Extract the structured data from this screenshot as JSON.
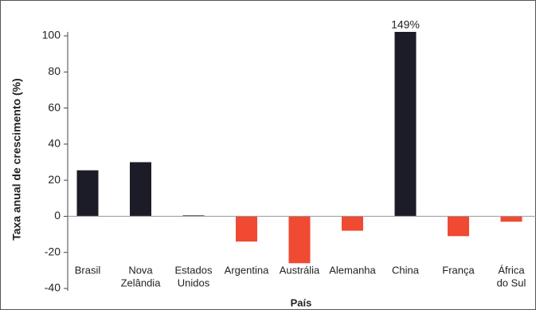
{
  "chart_data": {
    "type": "bar",
    "y_label": "Taxa anual de crescimento (%)",
    "x_label": "País",
    "categories": [
      [
        "Brasil"
      ],
      [
        "Nova",
        "Zelândia"
      ],
      [
        "Estados",
        "Unidos"
      ],
      [
        "Argentina"
      ],
      [
        "Austrália"
      ],
      [
        "Alemanha"
      ],
      [
        "China"
      ],
      [
        "França"
      ],
      [
        "África",
        "do Sul"
      ]
    ],
    "values": [
      25.5,
      30,
      0.5,
      -14,
      -26,
      -8,
      149,
      -11,
      -3
    ],
    "value_labels": [
      null,
      null,
      null,
      null,
      null,
      null,
      "149%",
      null,
      null
    ],
    "colors": [
      "#1c1c28",
      "#1c1c28",
      "#1c1c28",
      "#f04a32",
      "#f04a32",
      "#f04a32",
      "#1c1c28",
      "#f04a32",
      "#f04a32"
    ],
    "ylim": [
      -40,
      100
    ],
    "yticks": [
      -40,
      -20,
      0,
      20,
      40,
      60,
      80,
      100
    ]
  }
}
